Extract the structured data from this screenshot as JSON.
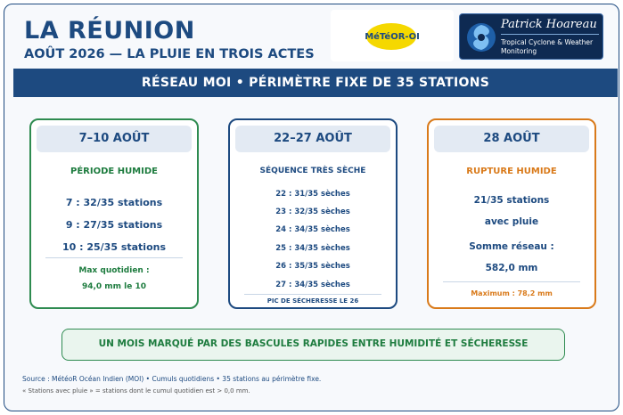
{
  "header": {
    "title": "LA RÉUNION",
    "subtitle": "AOÛT 2026 — LA PLUIE EN TROIS ACTES"
  },
  "logos": {
    "meteo": "MéTéOR-OI",
    "ph_name": "Patrick Hoareau",
    "ph_sub": "Tropical Cyclone & Weather Monitoring"
  },
  "banner": "RÉSEAU MOI • PÉRIMÈTRE FIXE DE 35 STATIONS",
  "cards": {
    "humid": {
      "title": "7–10 AOÛT",
      "period": "PÉRIODE HUMIDE",
      "rows": [
        "7 : 32/35 stations",
        "9 : 27/35 stations",
        "10 : 25/35 stations"
      ],
      "max_label": "Max quotidien :",
      "max_value": "94,0 mm le 10"
    },
    "dry": {
      "title": "22–27 AOÛT",
      "period": "SÉQUENCE TRÈS SÈCHE",
      "rows": [
        "22 : 31/35 sèches",
        "23 : 32/35 sèches",
        "24 : 34/35 sèches",
        "25 : 34/35 sèches",
        "26 : 35/35 sèches",
        "27 : 34/35 sèches"
      ],
      "peak": "PIC DE SÉCHERESSE LE 26"
    },
    "rupture": {
      "title": "28 AOÛT",
      "period": "RUPTURE HUMIDE",
      "line1": "21/35 stations",
      "line2": "avec pluie",
      "sum_label": "Somme réseau :",
      "sum_value": "582,0 mm",
      "max": "Maximum : 78,2 mm"
    }
  },
  "footer": {
    "banner": "UN MOIS MARQUÉ PAR DES BASCULES RAPIDES ENTRE HUMIDITÉ ET SÉCHERESSE",
    "source": "Source : MétéoR Océan Indien (MOI) • Cumuls quotidiens • 35 stations au périmètre fixe.",
    "note": "« Stations avec pluie » = stations dont le cumul quotidien est > 0,0 mm."
  },
  "colors": {
    "navy": "#1d4a80",
    "green": "#1e7c3f",
    "orange": "#d97a1a"
  }
}
